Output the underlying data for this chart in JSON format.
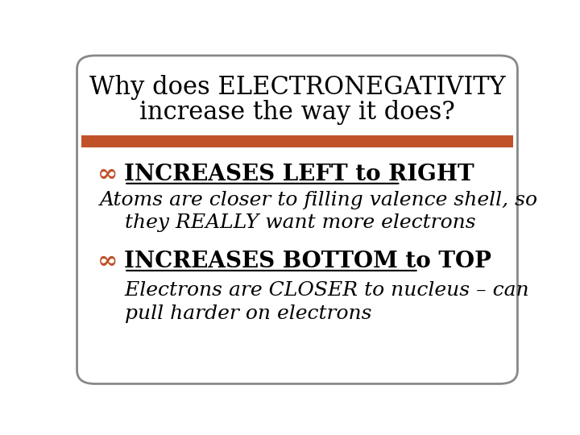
{
  "title_line1": "Why does ELECTRONEGATIVITY",
  "title_line2": "increase the way it does?",
  "title_fontsize": 22,
  "title_color": "#000000",
  "bar_color": "#C0522A",
  "bullet_color": "#C0522A",
  "section1_header": "INCREASES LEFT to RIGHT",
  "section1_body_line1": "Atoms are closer to filling valence shell, so",
  "section1_body_line2": "    they REALLY want more electrons",
  "section2_header": "INCREASES BOTTOM to TOP",
  "section2_body_line1": "    Electrons are CLOSER to nucleus – can",
  "section2_body_line2": "    pull harder on electrons",
  "header_fontsize": 20,
  "body_fontsize": 18,
  "bg_color": "#ffffff",
  "border_color": "#888888",
  "text_color": "#000000",
  "header_color": "#000000",
  "bullet_symbol": "∞"
}
